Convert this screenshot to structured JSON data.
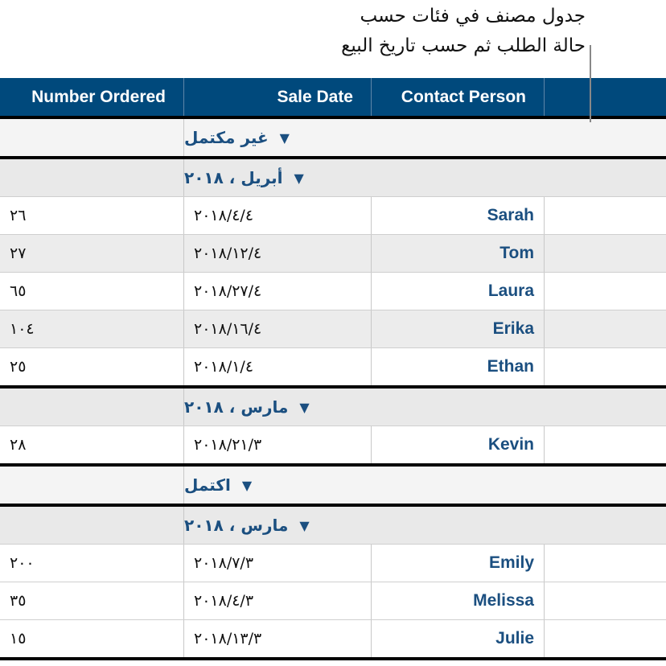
{
  "callout": {
    "line1": "جدول مصنف في فئات حسب",
    "line2": "حالة الطلب ثم حسب تاريخ البيع"
  },
  "colors": {
    "header": "#00497c",
    "accent_text": "#1b4f80"
  },
  "table": {
    "headers": [
      "Number Ordered",
      "Sale Date",
      "Contact Person",
      ""
    ],
    "rows": [
      {
        "type": "group",
        "label": "غير مكتمل",
        "icon": "disclosure-triangle-down"
      },
      {
        "type": "subgroup",
        "label": "أبريل ، ٢٠١٨",
        "icon": "disclosure-triangle-down"
      },
      {
        "type": "data",
        "name": "Sarah",
        "date": "٢٠١٨/٤/٤",
        "number": "٢٦"
      },
      {
        "type": "data",
        "name": "Tom",
        "date": "٢٠١٨/١٢/٤",
        "number": "٢٧"
      },
      {
        "type": "data",
        "name": "Laura",
        "date": "٢٠١٨/٢٧/٤",
        "number": "٦٥"
      },
      {
        "type": "data",
        "name": "Erika",
        "date": "٢٠١٨/١٦/٤",
        "number": "١٠٤"
      },
      {
        "type": "data",
        "name": "Ethan",
        "date": "٢٠١٨/١/٤",
        "number": "٢٥"
      },
      {
        "type": "subgroup",
        "label": "مارس ، ٢٠١٨",
        "icon": "disclosure-triangle-down"
      },
      {
        "type": "data",
        "name": "Kevin",
        "date": "٢٠١٨/٢١/٣",
        "number": "٢٨"
      },
      {
        "type": "group",
        "label": "اكتمل",
        "icon": "disclosure-triangle-down"
      },
      {
        "type": "subgroup",
        "label": "مارس ، ٢٠١٨",
        "icon": "disclosure-triangle-down"
      },
      {
        "type": "data",
        "name": "Emily",
        "date": "٢٠١٨/٧/٣",
        "number": "٢٠٠"
      },
      {
        "type": "data",
        "name": "Melissa",
        "date": "٢٠١٨/٤/٣",
        "number": "٣٥"
      },
      {
        "type": "data",
        "name": "Julie",
        "date": "٢٠١٨/١٣/٣",
        "number": "١٥"
      }
    ]
  }
}
